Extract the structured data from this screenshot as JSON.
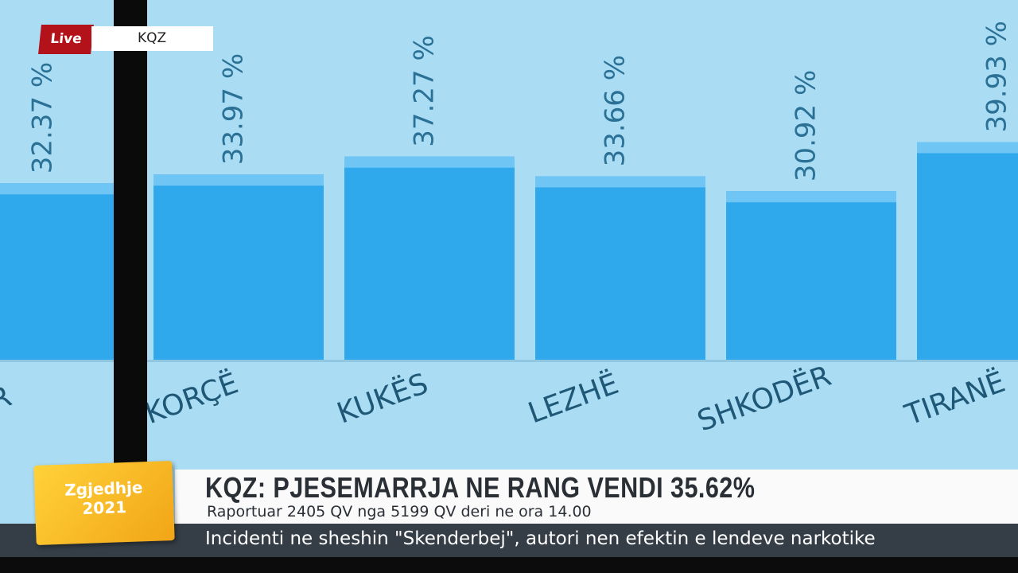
{
  "chart_data": {
    "type": "bar",
    "categories": [
      "R",
      "KORÇË",
      "KUKËS",
      "LEZHË",
      "SHKODËR",
      "TIRANË"
    ],
    "values": [
      32.37,
      33.97,
      37.27,
      33.66,
      30.92,
      39.93
    ],
    "value_labels": [
      "32.37 %",
      "33.97 %",
      "37.27 %",
      "33.66 %",
      "30.92 %",
      "39.93 %"
    ],
    "color": "#2fa9ec"
  },
  "badge": {
    "live": "Live",
    "source": "KQZ"
  },
  "logo": {
    "line1": "Zgjedhje",
    "line2": "2021"
  },
  "headline": "KQZ: PJESEMARRJA NE RANG VENDI 35.62%",
  "subheadline": "Raportuar 2405 QV nga 5199 QV deri ne ora 14.00",
  "ticker": "Incidenti ne sheshin \"Skenderbej\", autori nen efektin e lendeve narkotike"
}
